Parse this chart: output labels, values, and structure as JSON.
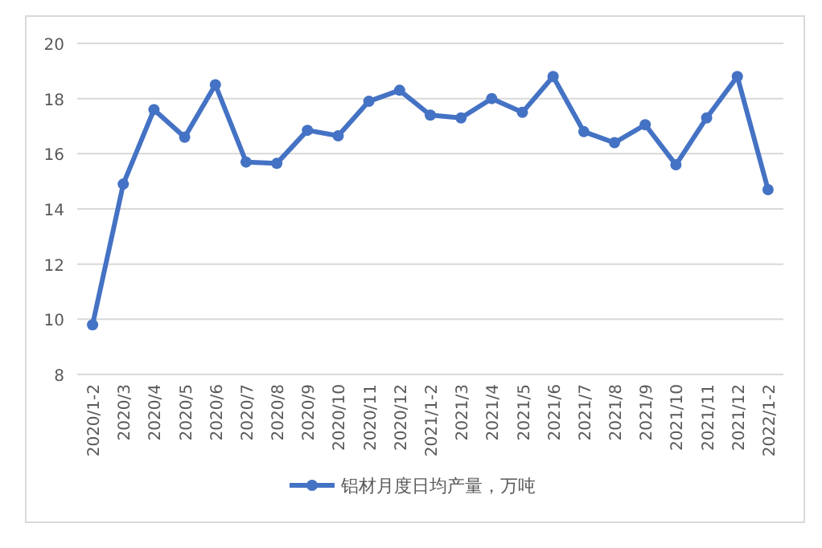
{
  "chart_data": {
    "type": "line",
    "categories": [
      "2020/1-2",
      "2020/3",
      "2020/4",
      "2020/5",
      "2020/6",
      "2020/7",
      "2020/8",
      "2020/9",
      "2020/10",
      "2020/11",
      "2020/12",
      "2021/1-2",
      "2021/3",
      "2021/4",
      "2021/5",
      "2021/6",
      "2021/7",
      "2021/8",
      "2021/9",
      "2021/10",
      "2021/11",
      "2021/12",
      "2022/1-2"
    ],
    "series": [
      {
        "name": "铝材月度日均产量，万吨",
        "color": "#4472c4",
        "values": [
          9.8,
          14.9,
          17.6,
          16.6,
          18.5,
          15.7,
          15.65,
          16.85,
          16.65,
          17.9,
          18.3,
          17.4,
          17.3,
          18.0,
          17.5,
          18.8,
          16.8,
          16.4,
          17.05,
          15.6,
          17.3,
          18.8,
          14.7
        ]
      }
    ],
    "ylim": [
      8,
      20
    ],
    "yticks": [
      8,
      10,
      12,
      14,
      16,
      18,
      20
    ],
    "grid": "y",
    "legend": "bottom",
    "marker": "circle",
    "line_style": "solid"
  }
}
